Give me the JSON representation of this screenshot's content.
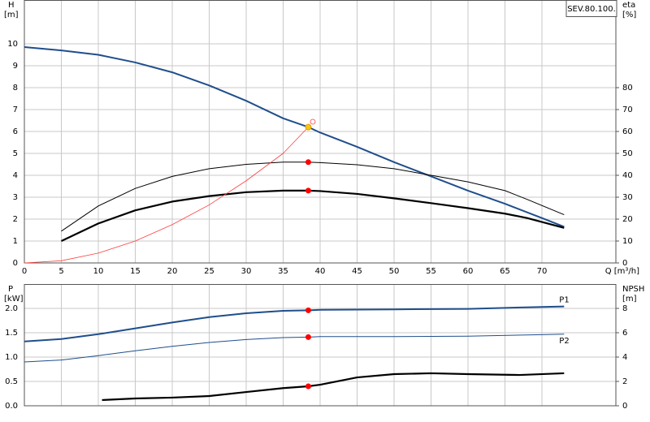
{
  "chart_data": [
    {
      "type": "line",
      "title": "SEV.80.100.",
      "xlabel": "Q [m³/h]",
      "ylabel": "H",
      "yunit": "[m]",
      "y2label": "eta",
      "y2unit": "[%]",
      "xlim": [
        0,
        80
      ],
      "xticks": [
        0,
        5,
        10,
        15,
        20,
        25,
        30,
        35,
        40,
        45,
        50,
        55,
        60,
        65,
        70
      ],
      "ylim": [
        0,
        12
      ],
      "yticks": [
        0,
        1,
        2,
        3,
        4,
        5,
        6,
        7,
        8,
        9,
        10
      ],
      "y2lim": [
        0,
        120
      ],
      "y2ticks": [
        0,
        10,
        20,
        30,
        40,
        50,
        60,
        70,
        80
      ],
      "grid": true,
      "show_xtick_labels": true,
      "series": [
        {
          "color": "#1f4e8c",
          "width": 2,
          "x": [
            0,
            5,
            10,
            15,
            20,
            25,
            30,
            35,
            38.4,
            40,
            45,
            50,
            55,
            60,
            65,
            70,
            73
          ],
          "values": [
            9.85,
            9.7,
            9.5,
            9.15,
            8.7,
            8.1,
            7.4,
            6.6,
            6.2,
            5.95,
            5.3,
            4.6,
            3.95,
            3.3,
            2.7,
            2.05,
            1.65
          ]
        },
        {
          "color": "#000000",
          "width": 1,
          "axis": "y2",
          "x": [
            5,
            10,
            15,
            20,
            25,
            30,
            35,
            38.4,
            40,
            45,
            50,
            55,
            60,
            65,
            68,
            73
          ],
          "values": [
            14.5,
            26,
            34,
            39.5,
            43,
            45,
            46,
            46,
            45.8,
            44.8,
            43,
            40,
            37,
            33,
            29,
            22
          ]
        },
        {
          "color": "#000000",
          "width": 2.2,
          "axis": "y2",
          "x": [
            5,
            10,
            15,
            20,
            25,
            30,
            35,
            38.4,
            40,
            45,
            50,
            55,
            60,
            65,
            68,
            73
          ],
          "values": [
            10,
            18,
            24,
            28,
            30.5,
            32.3,
            33,
            33,
            32.8,
            31.5,
            29.5,
            27.3,
            25,
            22.5,
            20.5,
            16
          ]
        },
        {
          "color": "#ff4040",
          "width": 0.8,
          "x": [
            0,
            5,
            10,
            15,
            20,
            25,
            30,
            35,
            38.4
          ],
          "values": [
            0,
            0.1,
            0.45,
            1.0,
            1.75,
            2.65,
            3.75,
            5.0,
            6.2
          ]
        }
      ],
      "markers": [
        {
          "x": 38.4,
          "y": 6.2,
          "color": "#f5c518"
        },
        {
          "x": 38.4,
          "y": 46,
          "axis": "y2",
          "color": "#ff0000"
        },
        {
          "x": 38.4,
          "y": 33,
          "axis": "y2",
          "color": "#ff0000"
        }
      ]
    },
    {
      "type": "line",
      "ylabel": "P",
      "yunit": "[kW]",
      "y2label": "NPSH",
      "y2unit": "[m]",
      "xlim": [
        0,
        80
      ],
      "xticks": [
        0,
        5,
        10,
        15,
        20,
        25,
        30,
        35,
        40,
        45,
        50,
        55,
        60,
        65,
        70
      ],
      "ylim": [
        0,
        2.5
      ],
      "yticks": [
        {
          "value": 0,
          "label": "0.0"
        },
        0.5,
        {
          "value": 1,
          "label": "1.0"
        },
        1.5,
        {
          "value": 2,
          "label": "2.0"
        }
      ],
      "y2lim": [
        0,
        10
      ],
      "y2ticks": [
        0,
        2,
        4,
        6,
        8
      ],
      "grid": true,
      "show_xtick_labels": false,
      "series": [
        {
          "name": "P1",
          "color": "#1f4e8c",
          "width": 2,
          "x": [
            0,
            5,
            10,
            15,
            20,
            25,
            30,
            35,
            38.4,
            40,
            50,
            60,
            70,
            73
          ],
          "values": [
            1.32,
            1.37,
            1.47,
            1.59,
            1.71,
            1.82,
            1.9,
            1.95,
            1.96,
            1.97,
            1.98,
            1.99,
            2.03,
            2.04
          ]
        },
        {
          "name": "P2",
          "color": "#1f4e8c",
          "width": 1,
          "x": [
            0,
            5,
            10,
            15,
            20,
            25,
            30,
            35,
            38.4,
            40,
            50,
            60,
            70,
            73
          ],
          "values": [
            0.9,
            0.94,
            1.03,
            1.13,
            1.22,
            1.3,
            1.36,
            1.4,
            1.41,
            1.42,
            1.42,
            1.43,
            1.46,
            1.47
          ]
        },
        {
          "color": "#000000",
          "width": 2.2,
          "axis": "y2",
          "x": [
            10.5,
            15,
            20,
            25,
            30,
            35,
            38.4,
            40,
            45,
            50,
            55,
            60,
            67,
            73
          ],
          "values": [
            0.47,
            0.6,
            0.67,
            0.8,
            1.13,
            1.45,
            1.6,
            1.73,
            2.33,
            2.6,
            2.67,
            2.6,
            2.53,
            2.67
          ]
        }
      ],
      "markers": [
        {
          "x": 38.4,
          "y": 1.96,
          "color": "#ff0000"
        },
        {
          "x": 38.4,
          "y": 1.41,
          "color": "#ff0000"
        },
        {
          "x": 38.4,
          "y": 1.6,
          "axis": "y2",
          "color": "#ff0000"
        }
      ]
    }
  ]
}
